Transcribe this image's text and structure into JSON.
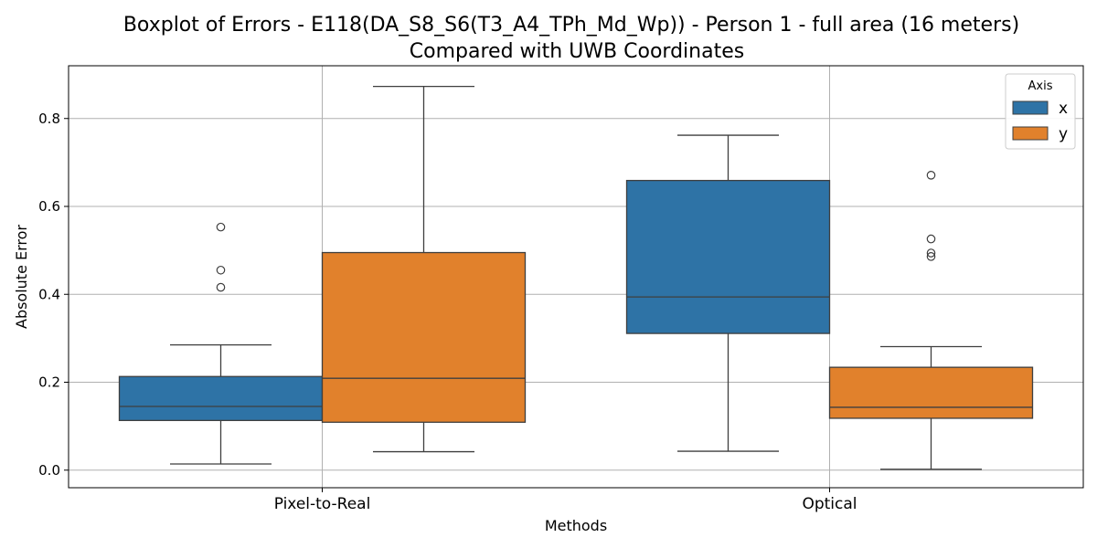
{
  "chart_data": {
    "type": "box",
    "title_line1": "Boxplot of Errors - E118(DA_S8_S6(T3_A4_TPh_Md_Wp)) - Person 1 - full area (16 meters)",
    "title_line2": "Compared with UWB Coordinates",
    "xlabel": "Methods",
    "ylabel": "Absolute Error",
    "categories": [
      "Pixel-to-Real",
      "Optical"
    ],
    "ylim": [
      -0.04,
      0.92
    ],
    "yticks": [
      0.0,
      0.2,
      0.4,
      0.6,
      0.8
    ],
    "ytick_labels": [
      "0.0",
      "0.2",
      "0.4",
      "0.6",
      "0.8"
    ],
    "grid": true,
    "legend": {
      "title": "Axis",
      "placement": "top-right"
    },
    "series": [
      {
        "name": "x",
        "color": "#2e73a6",
        "boxes": [
          {
            "category": "Pixel-to-Real",
            "whisker_low": 0.014,
            "q1": 0.113,
            "median": 0.145,
            "q3": 0.213,
            "whisker_high": 0.285,
            "outliers": [
              0.416,
              0.455,
              0.553
            ]
          },
          {
            "category": "Optical",
            "whisker_low": 0.043,
            "q1": 0.311,
            "median": 0.394,
            "q3": 0.659,
            "whisker_high": 0.762,
            "outliers": []
          }
        ]
      },
      {
        "name": "y",
        "color": "#e1812c",
        "boxes": [
          {
            "category": "Pixel-to-Real",
            "whisker_low": 0.042,
            "q1": 0.109,
            "median": 0.209,
            "q3": 0.495,
            "whisker_high": 0.873,
            "outliers": []
          },
          {
            "category": "Optical",
            "whisker_low": 0.002,
            "q1": 0.118,
            "median": 0.143,
            "q3": 0.234,
            "whisker_high": 0.281,
            "outliers": [
              0.486,
              0.494,
              0.526,
              0.671
            ]
          }
        ]
      }
    ]
  }
}
